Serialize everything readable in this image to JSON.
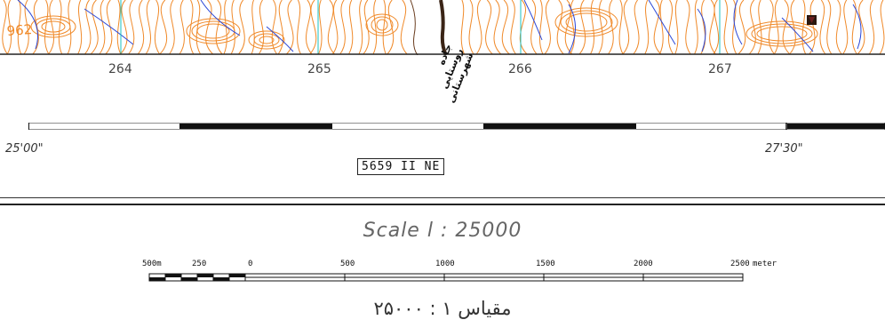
{
  "map": {
    "partial_label": "962",
    "eastings": [
      {
        "label": "264"
      },
      {
        "label": "265"
      },
      {
        "label": "266"
      },
      {
        "label": "267"
      }
    ],
    "road_label_lines": [
      "جاده روستایی",
      "شهرستانی"
    ],
    "contour_color": "#f08a2a",
    "stream_color": "#2b47d6",
    "grid_color": "#19c2c2"
  },
  "coords": {
    "left": "25'00\"",
    "right": "27'30\""
  },
  "sheet_id": "5659 II NE",
  "scale": {
    "title": "Scale l  :  25000",
    "tick_labels": [
      "500m",
      "250",
      "0",
      "500",
      "1000",
      "1500",
      "2000",
      "2500"
    ],
    "unit": "meter",
    "persian": "مقیاس   ۱ : ۲۵۰۰۰"
  }
}
